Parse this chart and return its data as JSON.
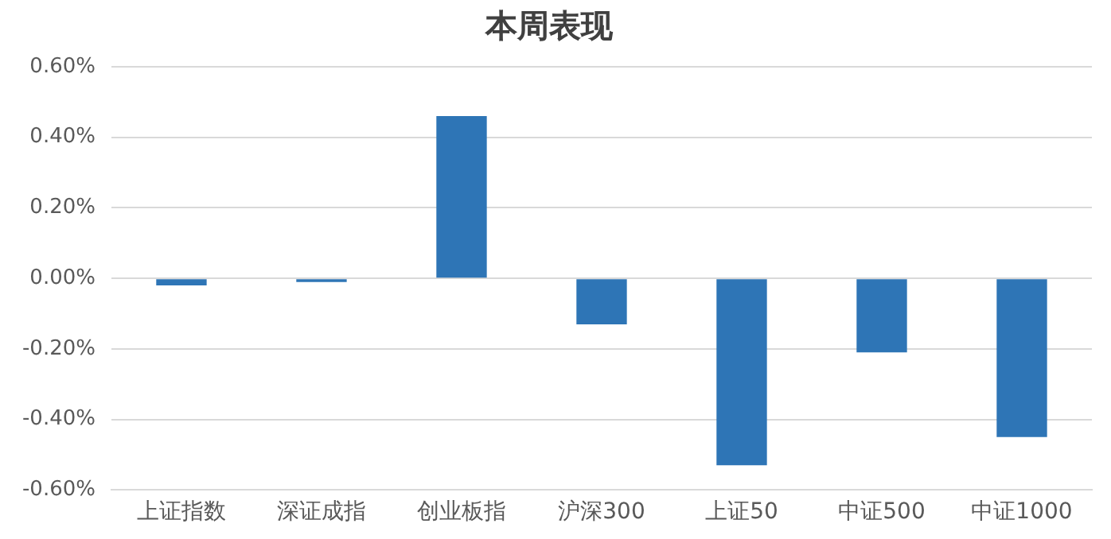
{
  "chart_data": {
    "type": "bar",
    "title": "本周表现",
    "categories": [
      "上证指数",
      "深证成指",
      "创业板指",
      "沪深300",
      "上证50",
      "中证500",
      "中证1000"
    ],
    "values": [
      -0.02,
      -0.01,
      0.46,
      -0.13,
      -0.53,
      -0.21,
      -0.45
    ],
    "color": "#2e75b6",
    "ylim": [
      -0.6,
      0.6
    ],
    "yticks": [
      {
        "value": -0.6,
        "label": "-0.60%"
      },
      {
        "value": -0.4,
        "label": "-0.40%"
      },
      {
        "value": -0.2,
        "label": "-0.20%"
      },
      {
        "value": 0,
        "label": "0.00%"
      },
      {
        "value": 0.2,
        "label": "0.20%"
      },
      {
        "value": 0.4,
        "label": "0.40%"
      },
      {
        "value": 0.6,
        "label": "0.60%"
      }
    ],
    "grid": "y",
    "legend": false
  }
}
